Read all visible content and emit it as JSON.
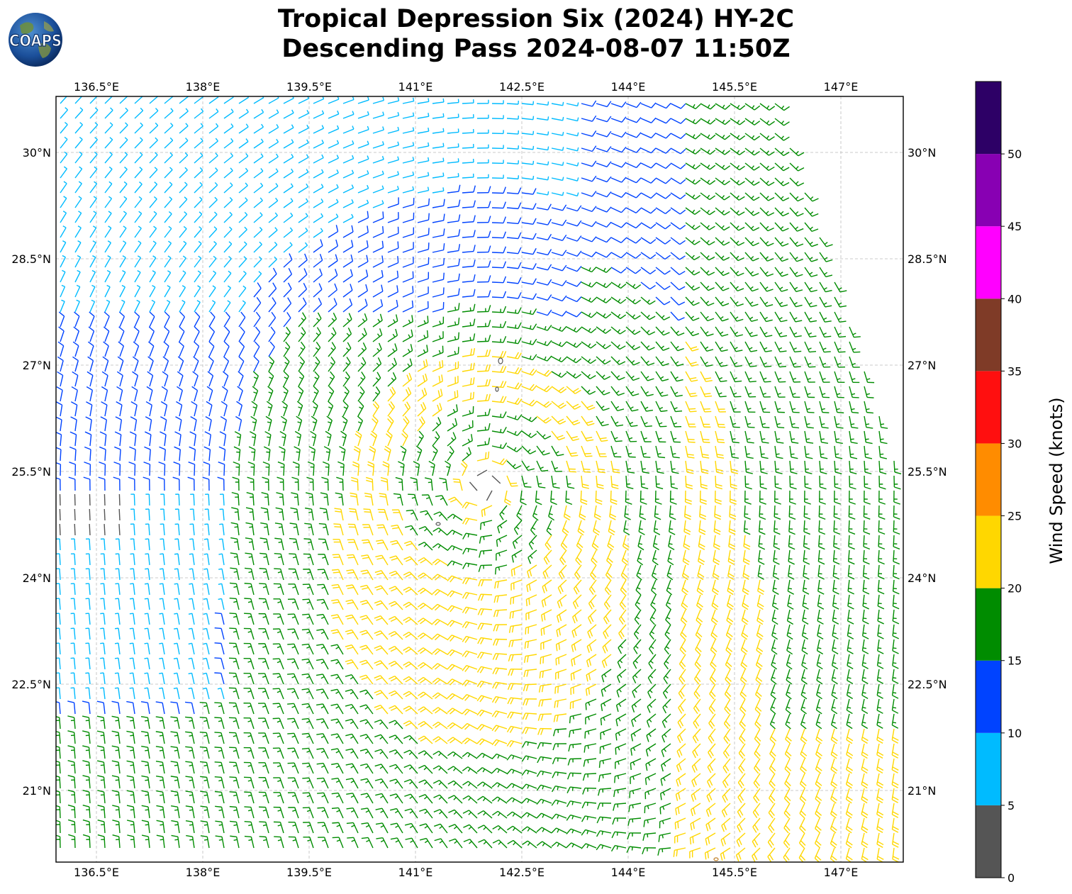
{
  "title": {
    "line1": "Tropical Depression Six (2024) HY-2C",
    "line2": "Descending Pass 2024-08-07 11:50Z"
  },
  "logo": {
    "text": "COAPS",
    "icon": "globe-icon"
  },
  "map": {
    "lon_ticks": [
      "136.5°E",
      "138°E",
      "139.5°E",
      "141°E",
      "142.5°E",
      "144°E",
      "145.5°E",
      "147°E"
    ],
    "lon_values": [
      136.5,
      138,
      139.5,
      141,
      142.5,
      144,
      145.5,
      147
    ],
    "lat_ticks": [
      "30°N",
      "28.5°N",
      "27°N",
      "25.5°N",
      "24°N",
      "22.5°N",
      "21°N"
    ],
    "lat_values": [
      30,
      28.5,
      27,
      25.5,
      24,
      22.5,
      21
    ],
    "lon_range": [
      135.93,
      147.88
    ],
    "lat_range": [
      19.99,
      30.79
    ],
    "grid": true,
    "cyclone_center": {
      "lon": 141.95,
      "lat": 25.3
    }
  },
  "colorbar": {
    "label": "Wind Speed (knots)",
    "ticks": [
      "0",
      "5",
      "10",
      "15",
      "20",
      "25",
      "30",
      "35",
      "40",
      "45",
      "50"
    ],
    "bounds": [
      0,
      5,
      10,
      15,
      20,
      25,
      30,
      35,
      40,
      45,
      50,
      55
    ],
    "colors": [
      "#555555",
      "#00bbff",
      "#0043ff",
      "#008c00",
      "#ffd700",
      "#ff8c00",
      "#ff0f0f",
      "#7f3b27",
      "#ff00ff",
      "#8800b3",
      "#2d0066"
    ]
  }
}
